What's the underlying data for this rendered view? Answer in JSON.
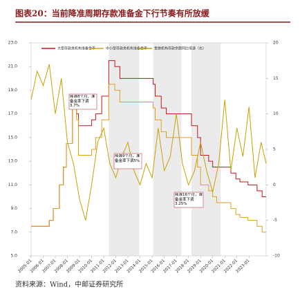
{
  "header": {
    "title": "图表20：当前降准周期存款准备金下行节奏有所放缓"
  },
  "footer": {
    "source": "资料来源：Wind，中邮证券研究所"
  },
  "chart_data": {
    "type": "line",
    "xlim": [
      "2005-01",
      "2024-06"
    ],
    "xticks": [
      "2005-01",
      "2006-01",
      "2007-01",
      "2008-01",
      "2009-01",
      "2010-01",
      "2011-01",
      "2012-01",
      "2013-01",
      "2014-01",
      "2015-01",
      "2016-01",
      "2017-01",
      "2018-01",
      "2019-01",
      "2020-01",
      "2021-01",
      "2022-01",
      "2023-01"
    ],
    "ylim": [
      5,
      23
    ],
    "yticks": [
      {
        "value": 5,
        "label": "5.0"
      },
      {
        "value": 7,
        "label": "7.0"
      },
      {
        "value": 9,
        "label": "9.0"
      },
      {
        "value": 11,
        "label": "11.0"
      },
      {
        "value": 13,
        "label": "13.0"
      },
      {
        "value": 15,
        "label": "15.0"
      },
      {
        "value": 17,
        "label": "17.0"
      },
      {
        "value": 19,
        "label": "19.0"
      },
      {
        "value": 21,
        "label": "21.0"
      },
      {
        "value": 23,
        "label": "23.0"
      }
    ],
    "y2lim": [
      -10,
      20
    ],
    "y2ticks": [
      -10,
      -5,
      0,
      5,
      10,
      15,
      20
    ],
    "shaded_periods": [
      [
        "2011-06",
        "2013-12"
      ],
      [
        "2015-02",
        "2017-06"
      ],
      [
        "2018-04",
        "2020-09"
      ]
    ],
    "series": [
      {
        "name": "大型存款类机构准备金率",
        "color": "#c0161d",
        "step": true,
        "x": [
          "2005-01",
          "2006-07",
          "2006-11",
          "2007-05",
          "2007-09",
          "2007-12",
          "2008-06",
          "2008-10",
          "2008-12",
          "2010-01",
          "2010-05",
          "2010-11",
          "2011-06",
          "2011-12",
          "2012-05",
          "2015-02",
          "2015-04",
          "2015-10",
          "2016-03",
          "2018-04",
          "2018-10",
          "2019-01",
          "2019-09",
          "2020-01",
          "2021-07",
          "2021-12",
          "2022-04",
          "2022-12",
          "2023-09",
          "2024-02",
          "2024-06"
        ],
        "values": [
          7.5,
          8,
          9,
          11,
          12.5,
          14.5,
          17.5,
          17,
          16,
          16.5,
          17,
          18.5,
          21.5,
          21,
          20,
          19.5,
          18.5,
          17.5,
          17,
          16,
          15,
          13.5,
          13,
          12.5,
          12,
          11.5,
          11.25,
          11,
          10.5,
          10,
          10
        ]
      },
      {
        "name": "中小型存款类机构准备金率",
        "color": "#e0a020",
        "step": true,
        "x": [
          "2005-01",
          "2006-07",
          "2006-11",
          "2007-05",
          "2007-09",
          "2007-12",
          "2008-06",
          "2008-10",
          "2008-12",
          "2010-01",
          "2010-05",
          "2010-11",
          "2011-06",
          "2011-12",
          "2012-05",
          "2015-02",
          "2015-04",
          "2015-10",
          "2016-03",
          "2018-04",
          "2018-10",
          "2019-01",
          "2019-09",
          "2020-01",
          "2020-05",
          "2021-07",
          "2021-12",
          "2022-04",
          "2022-12",
          "2023-09",
          "2024-02",
          "2024-06"
        ],
        "values": [
          7.5,
          8,
          9,
          11,
          12.5,
          14.5,
          17.5,
          16.5,
          13.5,
          14,
          15,
          16.5,
          19.5,
          19,
          18,
          17.5,
          16.5,
          15.5,
          15,
          13.5,
          12.5,
          11,
          10.5,
          10,
          9.5,
          9,
          8.5,
          8.25,
          8,
          7.5,
          7,
          7
        ]
      },
      {
        "name": "金融机构存款余额同比增速（右）",
        "color": "#c8a000",
        "axis": "y2",
        "x": [
          "2005-01",
          "2005-07",
          "2006-01",
          "2006-07",
          "2007-01",
          "2007-07",
          "2008-01",
          "2008-07",
          "2009-01",
          "2009-07",
          "2010-01",
          "2010-07",
          "2011-01",
          "2011-07",
          "2012-01",
          "2012-07",
          "2013-01",
          "2013-07",
          "2014-01",
          "2014-07",
          "2015-01",
          "2015-07",
          "2016-01",
          "2016-07",
          "2017-01",
          "2017-07",
          "2018-01",
          "2018-07",
          "2019-01",
          "2019-07",
          "2020-01",
          "2020-07",
          "2021-01",
          "2021-07",
          "2022-01",
          "2022-07",
          "2023-01",
          "2023-07",
          "2024-01",
          "2024-06"
        ],
        "values": [
          12,
          16,
          14,
          17,
          10,
          15,
          6,
          3,
          -2,
          -5,
          0,
          6,
          8,
          3,
          1,
          4,
          6,
          2,
          0,
          3,
          1,
          8,
          2,
          4,
          10,
          3,
          0,
          2,
          6,
          2,
          -1,
          3,
          12,
          2,
          8,
          4,
          11,
          1,
          6,
          3
        ]
      }
    ],
    "annotations": [
      "降准8个月，准备金率下调3.7%",
      "降准9个月，准备金率下调5%",
      "降准16个月，准备金率下调3.25%"
    ]
  }
}
